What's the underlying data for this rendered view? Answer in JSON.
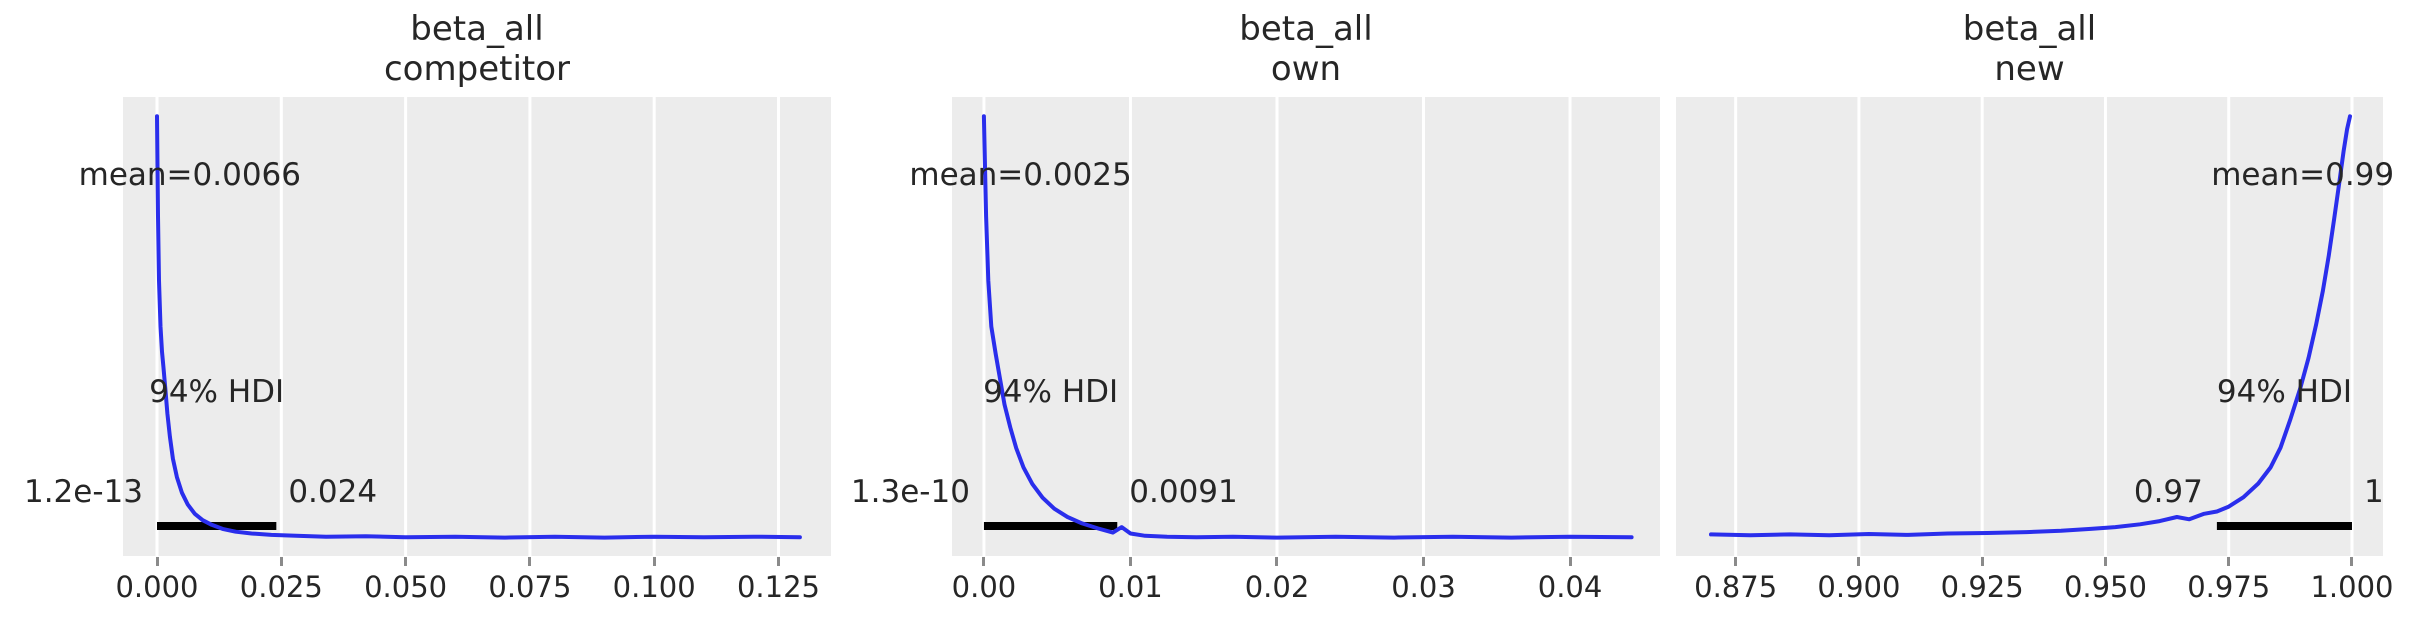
{
  "style": {
    "figure_bg": "#ffffff",
    "panel_bg": "#ececec",
    "grid_color": "#ffffff",
    "curve_color": "#2a2eec",
    "hdi_bar_color": "#000000",
    "text_color": "#262626",
    "tick_mark_color": "#8a8a8a"
  },
  "chart_data": [
    {
      "type": "line",
      "kind": "posterior_kde",
      "title": "beta_all",
      "subtitle": "competitor",
      "mean": 0.0066,
      "mean_label": "mean=0.0066",
      "hdi_label": "94% HDI",
      "hdi": {
        "lo": 1.2e-13,
        "hi": 0.024,
        "lo_label": "1.2e-13",
        "hi_label": "0.024"
      },
      "xlim": [
        -0.00684,
        0.13556
      ],
      "xticks": [
        0.0,
        0.025,
        0.05,
        0.075,
        0.1,
        0.125
      ],
      "xtick_labels": [
        "0.000",
        "0.025",
        "0.050",
        "0.075",
        "0.100",
        "0.125"
      ],
      "ylabel": "",
      "grid": "vertical",
      "legend": "none",
      "curve": [
        [
          0.0,
          0.958
        ],
        [
          0.0002,
          0.74
        ],
        [
          0.0004,
          0.6
        ],
        [
          0.0007,
          0.5
        ],
        [
          0.001,
          0.445
        ],
        [
          0.0013,
          0.41
        ],
        [
          0.0017,
          0.36
        ],
        [
          0.0021,
          0.31
        ],
        [
          0.0026,
          0.26
        ],
        [
          0.0032,
          0.212
        ],
        [
          0.004,
          0.172
        ],
        [
          0.005,
          0.138
        ],
        [
          0.0062,
          0.112
        ],
        [
          0.0076,
          0.092
        ],
        [
          0.0092,
          0.078
        ],
        [
          0.011,
          0.068
        ],
        [
          0.0132,
          0.059
        ],
        [
          0.0158,
          0.053
        ],
        [
          0.019,
          0.049
        ],
        [
          0.023,
          0.046
        ],
        [
          0.028,
          0.044
        ],
        [
          0.034,
          0.042
        ],
        [
          0.042,
          0.043
        ],
        [
          0.05,
          0.041
        ],
        [
          0.06,
          0.042
        ],
        [
          0.07,
          0.04
        ],
        [
          0.08,
          0.042
        ],
        [
          0.09,
          0.04
        ],
        [
          0.1,
          0.042
        ],
        [
          0.11,
          0.041
        ],
        [
          0.12,
          0.042
        ],
        [
          0.1293,
          0.041
        ]
      ]
    },
    {
      "type": "line",
      "kind": "posterior_kde",
      "title": "beta_all",
      "subtitle": "own",
      "mean": 0.0025,
      "mean_label": "mean=0.0025",
      "hdi_label": "94% HDI",
      "hdi": {
        "lo": 1.3e-10,
        "hi": 0.0091,
        "lo_label": "1.3e-10",
        "hi_label": "0.0091"
      },
      "xlim": [
        -0.00218,
        0.04614
      ],
      "xticks": [
        0.0,
        0.01,
        0.02,
        0.03,
        0.04
      ],
      "xtick_labels": [
        "0.00",
        "0.01",
        "0.02",
        "0.03",
        "0.04"
      ],
      "ylabel": "",
      "grid": "vertical",
      "legend": "none",
      "curve": [
        [
          0.0,
          0.958
        ],
        [
          0.00015,
          0.74
        ],
        [
          0.0003,
          0.6
        ],
        [
          0.0005,
          0.5
        ],
        [
          0.0008,
          0.44
        ],
        [
          0.0011,
          0.385
        ],
        [
          0.0014,
          0.33
        ],
        [
          0.0018,
          0.28
        ],
        [
          0.0022,
          0.235
        ],
        [
          0.0027,
          0.193
        ],
        [
          0.0033,
          0.157
        ],
        [
          0.004,
          0.127
        ],
        [
          0.0048,
          0.103
        ],
        [
          0.0057,
          0.085
        ],
        [
          0.0067,
          0.071
        ],
        [
          0.0078,
          0.06
        ],
        [
          0.0088,
          0.051
        ],
        [
          0.0094,
          0.063
        ],
        [
          0.01,
          0.049
        ],
        [
          0.011,
          0.044
        ],
        [
          0.0125,
          0.042
        ],
        [
          0.0145,
          0.041
        ],
        [
          0.017,
          0.042
        ],
        [
          0.02,
          0.04
        ],
        [
          0.024,
          0.042
        ],
        [
          0.028,
          0.04
        ],
        [
          0.032,
          0.042
        ],
        [
          0.036,
          0.04
        ],
        [
          0.04,
          0.042
        ],
        [
          0.0442,
          0.041
        ]
      ]
    },
    {
      "type": "line",
      "kind": "posterior_kde",
      "title": "beta_all",
      "subtitle": "new",
      "mean": 0.99,
      "mean_label": "mean=0.99",
      "hdi_label": "94% HDI",
      "hdi": {
        "lo": 0.9726,
        "hi": 1.0,
        "lo_label": "0.97",
        "hi_label": "1"
      },
      "xlim": [
        0.8629,
        1.00629
      ],
      "xticks": [
        0.875,
        0.9,
        0.925,
        0.95,
        0.975,
        1.0
      ],
      "xtick_labels": [
        "0.875",
        "0.900",
        "0.925",
        "0.950",
        "0.975",
        "1.000"
      ],
      "ylabel": "",
      "grid": "vertical",
      "legend": "none",
      "curve": [
        [
          0.87,
          0.047
        ],
        [
          0.878,
          0.045
        ],
        [
          0.886,
          0.047
        ],
        [
          0.894,
          0.045
        ],
        [
          0.902,
          0.048
        ],
        [
          0.91,
          0.046
        ],
        [
          0.918,
          0.049
        ],
        [
          0.926,
          0.05
        ],
        [
          0.934,
          0.052
        ],
        [
          0.941,
          0.055
        ],
        [
          0.947,
          0.059
        ],
        [
          0.952,
          0.063
        ],
        [
          0.957,
          0.069
        ],
        [
          0.961,
          0.076
        ],
        [
          0.9645,
          0.085
        ],
        [
          0.967,
          0.08
        ],
        [
          0.97,
          0.092
        ],
        [
          0.9726,
          0.097
        ],
        [
          0.9749,
          0.107
        ],
        [
          0.978,
          0.128
        ],
        [
          0.981,
          0.158
        ],
        [
          0.9835,
          0.193
        ],
        [
          0.9855,
          0.236
        ],
        [
          0.9875,
          0.298
        ],
        [
          0.9895,
          0.365
        ],
        [
          0.9912,
          0.432
        ],
        [
          0.9927,
          0.503
        ],
        [
          0.9941,
          0.578
        ],
        [
          0.9953,
          0.655
        ],
        [
          0.9964,
          0.735
        ],
        [
          0.9974,
          0.812
        ],
        [
          0.9983,
          0.882
        ],
        [
          0.999,
          0.93
        ],
        [
          0.9996,
          0.958
        ]
      ]
    }
  ]
}
